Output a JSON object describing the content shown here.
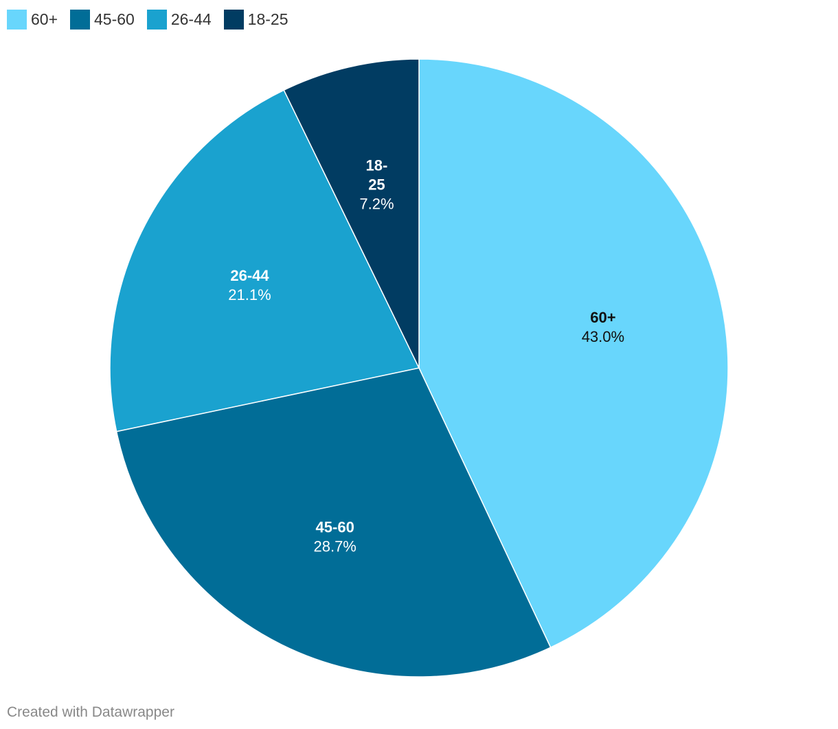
{
  "legend": [
    {
      "label": "60+",
      "color": "#68d6fc"
    },
    {
      "label": "45-60",
      "color": "#016d97"
    },
    {
      "label": "26-44",
      "color": "#1aa2cf"
    },
    {
      "label": "18-25",
      "color": "#013c62"
    }
  ],
  "credit": "Created with Datawrapper",
  "chart_data": {
    "type": "pie",
    "slices": [
      {
        "label": "60+",
        "label_lines": [
          "60+"
        ],
        "value": 43.0,
        "value_label": "43.0%",
        "color": "#68d6fc",
        "text_color": "#111111"
      },
      {
        "label": "45-60",
        "label_lines": [
          "45-60"
        ],
        "value": 28.7,
        "value_label": "28.7%",
        "color": "#016d97",
        "text_color": "#ffffff"
      },
      {
        "label": "26-44",
        "label_lines": [
          "26-44"
        ],
        "value": 21.1,
        "value_label": "21.1%",
        "color": "#1aa2cf",
        "text_color": "#ffffff"
      },
      {
        "label": "18-25",
        "label_lines": [
          "18-",
          "25"
        ],
        "value": 7.2,
        "value_label": "7.2%",
        "color": "#013c62",
        "text_color": "#ffffff"
      }
    ],
    "start_angle": "top",
    "direction": "clockwise",
    "legend_position": "top-left"
  }
}
